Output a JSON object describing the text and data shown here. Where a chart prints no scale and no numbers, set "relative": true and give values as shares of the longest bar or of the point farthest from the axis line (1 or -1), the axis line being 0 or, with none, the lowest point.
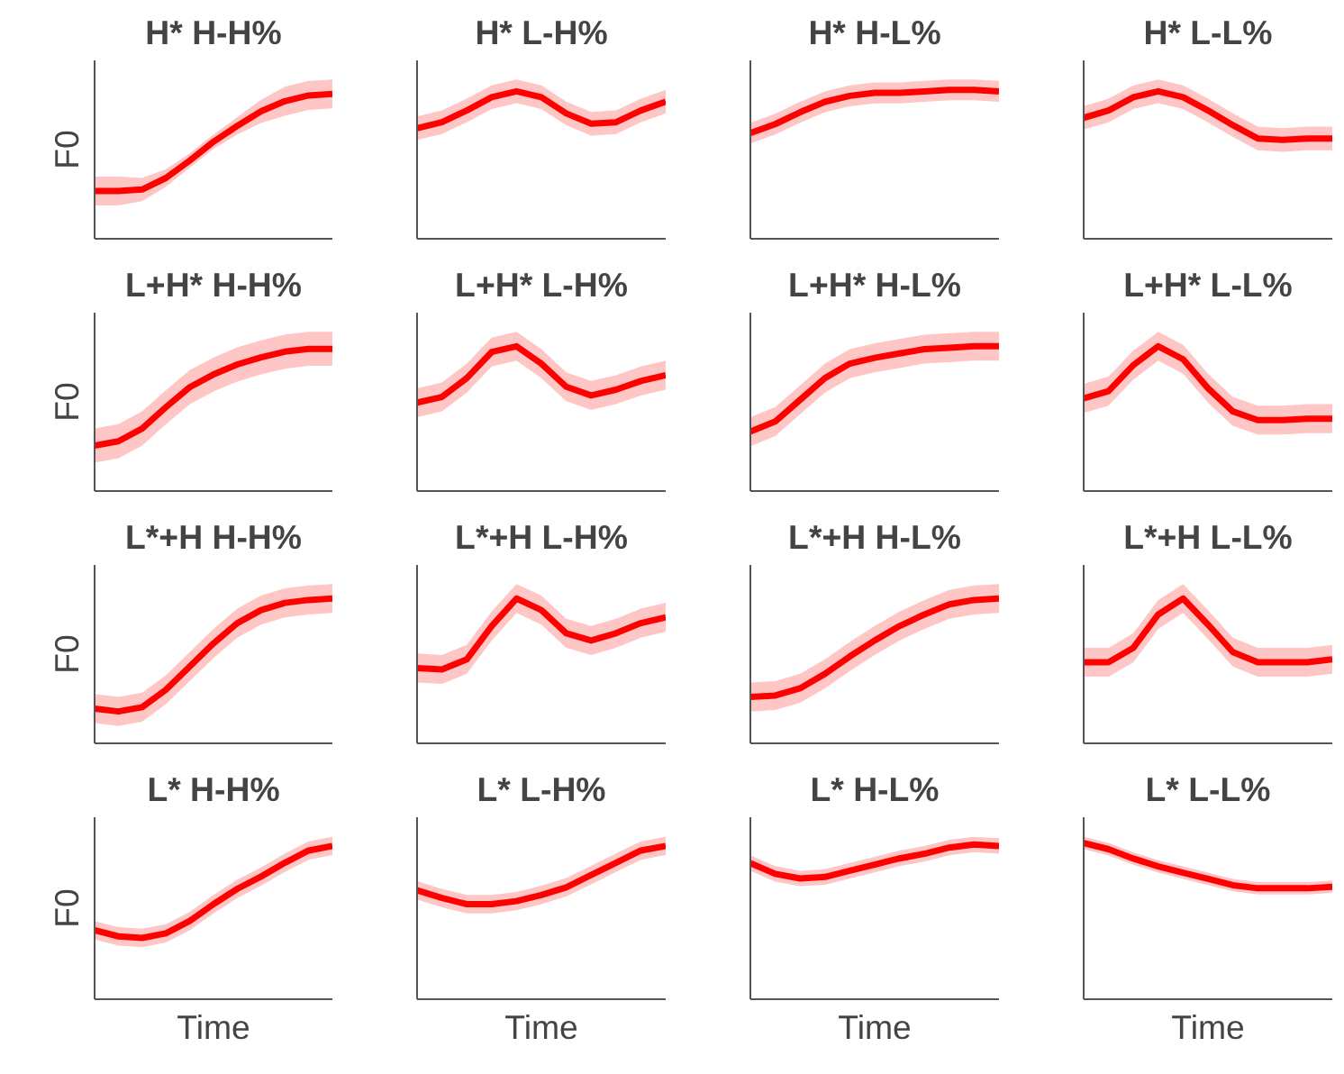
{
  "chart_data": [
    {
      "type": "line",
      "title": "H* H-H%",
      "ylabel": "F0",
      "relative": true,
      "tick_labels": false,
      "categories": [
        null,
        null,
        null,
        null,
        null,
        null,
        null,
        null,
        null,
        null,
        null
      ],
      "series": [
        {
          "color": "#ff0000",
          "values": [
            0.33,
            0.33,
            0.34,
            0.42,
            0.54,
            0.67,
            0.78,
            0.88,
            0.95,
            0.99,
            1
          ],
          "lower": [
            0.23,
            0.23,
            0.26,
            0.36,
            0.49,
            0.62,
            0.72,
            0.8,
            0.85,
            0.89,
            0.9
          ],
          "upper": [
            0.43,
            0.43,
            0.42,
            0.48,
            0.59,
            0.72,
            0.84,
            0.96,
            1.05,
            1.09,
            1.1
          ]
        }
      ]
    },
    {
      "type": "line",
      "title": "H* L-H%",
      "relative": true,
      "tick_labels": false,
      "categories": [
        null,
        null,
        null,
        null,
        null,
        null,
        null,
        null,
        null,
        null,
        null
      ],
      "series": [
        {
          "color": "#ff0000",
          "values": [
            0.75,
            0.79,
            0.87,
            0.96,
            1,
            0.96,
            0.85,
            0.78,
            0.79,
            0.87,
            0.93
          ],
          "lower": [
            0.67,
            0.71,
            0.79,
            0.88,
            0.92,
            0.88,
            0.77,
            0.7,
            0.71,
            0.79,
            0.85
          ],
          "upper": [
            0.83,
            0.87,
            0.95,
            1.04,
            1.08,
            1.04,
            0.93,
            0.86,
            0.87,
            0.95,
            1.01
          ]
        }
      ]
    },
    {
      "type": "line",
      "title": "H* H-L%",
      "relative": true,
      "tick_labels": false,
      "categories": [
        null,
        null,
        null,
        null,
        null,
        null,
        null,
        null,
        null,
        null,
        null
      ],
      "series": [
        {
          "color": "#ff0000",
          "values": [
            0.71,
            0.77,
            0.85,
            0.92,
            0.96,
            0.98,
            0.98,
            0.99,
            1,
            1,
            0.99
          ],
          "lower": [
            0.64,
            0.7,
            0.78,
            0.85,
            0.89,
            0.91,
            0.91,
            0.92,
            0.93,
            0.93,
            0.92
          ],
          "upper": [
            0.78,
            0.84,
            0.92,
            0.99,
            1.03,
            1.05,
            1.05,
            1.06,
            1.07,
            1.07,
            1.06
          ]
        }
      ]
    },
    {
      "type": "line",
      "title": "H* L-L%",
      "relative": true,
      "tick_labels": false,
      "categories": [
        null,
        null,
        null,
        null,
        null,
        null,
        null,
        null,
        null,
        null,
        null
      ],
      "series": [
        {
          "color": "#ff0000",
          "values": [
            0.82,
            0.87,
            0.96,
            1,
            0.96,
            0.87,
            0.77,
            0.68,
            0.67,
            0.68,
            0.68
          ],
          "lower": [
            0.74,
            0.79,
            0.88,
            0.92,
            0.88,
            0.79,
            0.69,
            0.6,
            0.59,
            0.6,
            0.6
          ],
          "upper": [
            0.9,
            0.95,
            1.04,
            1.08,
            1.04,
            0.95,
            0.85,
            0.76,
            0.75,
            0.76,
            0.76
          ]
        }
      ]
    },
    {
      "type": "line",
      "title": "L+H* H-H%",
      "ylabel": "F0",
      "relative": true,
      "tick_labels": false,
      "categories": [
        null,
        null,
        null,
        null,
        null,
        null,
        null,
        null,
        null,
        null,
        null
      ],
      "series": [
        {
          "color": "#ff0000",
          "values": [
            0.32,
            0.35,
            0.44,
            0.59,
            0.73,
            0.82,
            0.89,
            0.94,
            0.98,
            1,
            1
          ],
          "lower": [
            0.2,
            0.23,
            0.32,
            0.47,
            0.61,
            0.7,
            0.77,
            0.82,
            0.86,
            0.88,
            0.88
          ],
          "upper": [
            0.44,
            0.47,
            0.56,
            0.71,
            0.85,
            0.94,
            1.01,
            1.06,
            1.1,
            1.12,
            1.12
          ]
        }
      ]
    },
    {
      "type": "line",
      "title": "L+H* L-H%",
      "relative": true,
      "tick_labels": false,
      "categories": [
        null,
        null,
        null,
        null,
        null,
        null,
        null,
        null,
        null,
        null,
        null
      ],
      "series": [
        {
          "color": "#ff0000",
          "values": [
            0.61,
            0.65,
            0.78,
            0.96,
            1,
            0.88,
            0.72,
            0.66,
            0.7,
            0.76,
            0.8
          ],
          "lower": [
            0.51,
            0.55,
            0.68,
            0.86,
            0.9,
            0.78,
            0.62,
            0.56,
            0.6,
            0.66,
            0.7
          ],
          "upper": [
            0.71,
            0.75,
            0.88,
            1.06,
            1.1,
            0.98,
            0.82,
            0.76,
            0.8,
            0.86,
            0.9
          ]
        }
      ]
    },
    {
      "type": "line",
      "title": "L+H* H-L%",
      "relative": true,
      "tick_labels": false,
      "categories": [
        null,
        null,
        null,
        null,
        null,
        null,
        null,
        null,
        null,
        null,
        null
      ],
      "series": [
        {
          "color": "#ff0000",
          "values": [
            0.41,
            0.48,
            0.63,
            0.78,
            0.88,
            0.92,
            0.95,
            0.98,
            0.99,
            1,
            1
          ],
          "lower": [
            0.31,
            0.38,
            0.53,
            0.68,
            0.78,
            0.82,
            0.85,
            0.88,
            0.89,
            0.9,
            0.9
          ],
          "upper": [
            0.51,
            0.58,
            0.73,
            0.88,
            0.98,
            1.02,
            1.05,
            1.08,
            1.09,
            1.1,
            1.1
          ]
        }
      ]
    },
    {
      "type": "line",
      "title": "L+H* L-L%",
      "relative": true,
      "tick_labels": false,
      "categories": [
        null,
        null,
        null,
        null,
        null,
        null,
        null,
        null,
        null,
        null,
        null
      ],
      "series": [
        {
          "color": "#ff0000",
          "values": [
            0.64,
            0.69,
            0.87,
            1,
            0.91,
            0.71,
            0.55,
            0.49,
            0.49,
            0.5,
            0.5
          ],
          "lower": [
            0.54,
            0.59,
            0.77,
            0.9,
            0.81,
            0.61,
            0.45,
            0.39,
            0.39,
            0.4,
            0.4
          ],
          "upper": [
            0.74,
            0.79,
            0.97,
            1.1,
            1.01,
            0.81,
            0.65,
            0.59,
            0.59,
            0.6,
            0.6
          ]
        }
      ]
    },
    {
      "type": "line",
      "title": "L*+H H-H%",
      "ylabel": "F0",
      "relative": true,
      "tick_labels": false,
      "categories": [
        null,
        null,
        null,
        null,
        null,
        null,
        null,
        null,
        null,
        null,
        null
      ],
      "series": [
        {
          "color": "#ff0000",
          "values": [
            0.24,
            0.22,
            0.25,
            0.37,
            0.53,
            0.69,
            0.83,
            0.92,
            0.97,
            0.99,
            1
          ],
          "lower": [
            0.14,
            0.12,
            0.15,
            0.27,
            0.43,
            0.59,
            0.73,
            0.82,
            0.87,
            0.89,
            0.9
          ],
          "upper": [
            0.34,
            0.32,
            0.35,
            0.47,
            0.63,
            0.79,
            0.93,
            1.02,
            1.07,
            1.09,
            1.1
          ]
        }
      ]
    },
    {
      "type": "line",
      "title": "L*+H L-H%",
      "relative": true,
      "tick_labels": false,
      "categories": [
        null,
        null,
        null,
        null,
        null,
        null,
        null,
        null,
        null,
        null,
        null
      ],
      "series": [
        {
          "color": "#ff0000",
          "values": [
            0.52,
            0.51,
            0.58,
            0.81,
            1,
            0.92,
            0.76,
            0.71,
            0.76,
            0.83,
            0.87
          ],
          "lower": [
            0.42,
            0.41,
            0.48,
            0.71,
            0.9,
            0.82,
            0.66,
            0.61,
            0.66,
            0.73,
            0.77
          ],
          "upper": [
            0.62,
            0.61,
            0.68,
            0.91,
            1.1,
            1.02,
            0.86,
            0.81,
            0.86,
            0.93,
            0.97
          ]
        }
      ]
    },
    {
      "type": "line",
      "title": "L*+H H-L%",
      "relative": true,
      "tick_labels": false,
      "categories": [
        null,
        null,
        null,
        null,
        null,
        null,
        null,
        null,
        null,
        null,
        null
      ],
      "series": [
        {
          "color": "#ff0000",
          "values": [
            0.32,
            0.33,
            0.38,
            0.48,
            0.6,
            0.71,
            0.81,
            0.89,
            0.96,
            0.99,
            1
          ],
          "lower": [
            0.22,
            0.23,
            0.28,
            0.38,
            0.5,
            0.61,
            0.71,
            0.79,
            0.86,
            0.89,
            0.9
          ],
          "upper": [
            0.42,
            0.43,
            0.48,
            0.58,
            0.7,
            0.81,
            0.91,
            0.99,
            1.06,
            1.09,
            1.1
          ]
        }
      ]
    },
    {
      "type": "line",
      "title": "L*+H L-L%",
      "relative": true,
      "tick_labels": false,
      "categories": [
        null,
        null,
        null,
        null,
        null,
        null,
        null,
        null,
        null,
        null,
        null
      ],
      "series": [
        {
          "color": "#ff0000",
          "values": [
            0.56,
            0.56,
            0.66,
            0.89,
            1,
            0.82,
            0.63,
            0.56,
            0.56,
            0.56,
            0.58
          ],
          "lower": [
            0.46,
            0.46,
            0.56,
            0.79,
            0.9,
            0.72,
            0.53,
            0.46,
            0.46,
            0.46,
            0.48
          ],
          "upper": [
            0.66,
            0.66,
            0.76,
            0.99,
            1.1,
            0.92,
            0.73,
            0.66,
            0.66,
            0.66,
            0.68
          ]
        }
      ]
    },
    {
      "type": "line",
      "title": "L* H-H%",
      "ylabel": "F0",
      "xlabel": "Time",
      "relative": true,
      "tick_labels": false,
      "categories": [
        null,
        null,
        null,
        null,
        null,
        null,
        null,
        null,
        null,
        null,
        null
      ],
      "series": [
        {
          "color": "#ff0000",
          "values": [
            0.45,
            0.41,
            0.4,
            0.43,
            0.51,
            0.62,
            0.72,
            0.8,
            0.89,
            0.97,
            1
          ],
          "lower": [
            0.39,
            0.35,
            0.34,
            0.37,
            0.45,
            0.56,
            0.66,
            0.74,
            0.83,
            0.91,
            0.94
          ],
          "upper": [
            0.51,
            0.47,
            0.46,
            0.49,
            0.57,
            0.68,
            0.78,
            0.86,
            0.95,
            1.03,
            1.06
          ]
        }
      ]
    },
    {
      "type": "line",
      "title": "L* L-H%",
      "xlabel": "Time",
      "relative": true,
      "tick_labels": false,
      "categories": [
        null,
        null,
        null,
        null,
        null,
        null,
        null,
        null,
        null,
        null,
        null
      ],
      "series": [
        {
          "color": "#ff0000",
          "values": [
            0.71,
            0.66,
            0.62,
            0.62,
            0.64,
            0.68,
            0.73,
            0.81,
            0.89,
            0.97,
            1
          ],
          "lower": [
            0.65,
            0.6,
            0.56,
            0.56,
            0.58,
            0.62,
            0.67,
            0.75,
            0.83,
            0.91,
            0.94
          ],
          "upper": [
            0.77,
            0.72,
            0.68,
            0.68,
            0.7,
            0.74,
            0.79,
            0.87,
            0.95,
            1.03,
            1.06
          ]
        }
      ]
    },
    {
      "type": "line",
      "title": "L* H-L%",
      "xlabel": "Time",
      "relative": true,
      "tick_labels": false,
      "categories": [
        null,
        null,
        null,
        null,
        null,
        null,
        null,
        null,
        null,
        null,
        null
      ],
      "series": [
        {
          "color": "#ff0000",
          "values": [
            0.88,
            0.81,
            0.78,
            0.79,
            0.83,
            0.87,
            0.91,
            0.94,
            0.98,
            1,
            0.99
          ],
          "lower": [
            0.83,
            0.76,
            0.73,
            0.74,
            0.78,
            0.82,
            0.86,
            0.89,
            0.93,
            0.95,
            0.94
          ],
          "upper": [
            0.93,
            0.86,
            0.83,
            0.84,
            0.88,
            0.92,
            0.96,
            0.99,
            1.03,
            1.05,
            1.04
          ]
        }
      ]
    },
    {
      "type": "line",
      "title": "L* L-L%",
      "xlabel": "Time",
      "relative": true,
      "tick_labels": false,
      "categories": [
        null,
        null,
        null,
        null,
        null,
        null,
        null,
        null,
        null,
        null,
        null
      ],
      "series": [
        {
          "color": "#ff0000",
          "values": [
            1,
            0.96,
            0.9,
            0.85,
            0.81,
            0.77,
            0.73,
            0.71,
            0.71,
            0.71,
            0.72
          ],
          "lower": [
            0.96,
            0.92,
            0.86,
            0.81,
            0.77,
            0.73,
            0.69,
            0.67,
            0.67,
            0.67,
            0.68
          ],
          "upper": [
            1.04,
            1,
            0.94,
            0.89,
            0.85,
            0.81,
            0.77,
            0.75,
            0.75,
            0.75,
            0.76
          ]
        }
      ]
    }
  ]
}
